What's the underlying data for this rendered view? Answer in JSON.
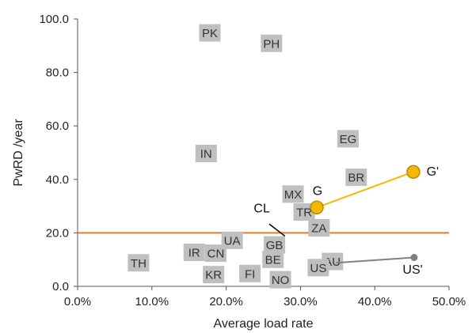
{
  "chart_data": {
    "type": "scatter",
    "title": "",
    "xlabel": "Average load rate",
    "ylabel": "PwRD /year",
    "xlim": [
      0,
      50
    ],
    "ylim": [
      0,
      100
    ],
    "x_ticks": [
      "0.0%",
      "10.0%",
      "20.0%",
      "30.0%",
      "40.0%",
      "50.0%"
    ],
    "x_tick_values": [
      0,
      10,
      20,
      30,
      40,
      50
    ],
    "y_ticks": [
      "0.0",
      "20.0",
      "40.0",
      "60.0",
      "80.0",
      "100.0"
    ],
    "y_tick_values": [
      0,
      20,
      40,
      60,
      80,
      100
    ],
    "grid": false,
    "legend": "none",
    "colors": {
      "label_box": "#bfbfbf",
      "threshold_line": "#f07b22",
      "g_series": "#f5b800",
      "g_series_stroke": "#b8860b",
      "us_series": "#808080",
      "axis": "#555555"
    },
    "countries": [
      {
        "label": "PK",
        "x": 17.8,
        "y": 94.8
      },
      {
        "label": "PH",
        "x": 26.1,
        "y": 90.9
      },
      {
        "label": "IN",
        "x": 17.3,
        "y": 49.7
      },
      {
        "label": "EG",
        "x": 36.4,
        "y": 55.2
      },
      {
        "label": "BR",
        "x": 37.5,
        "y": 40.8
      },
      {
        "label": "MX",
        "x": 29.0,
        "y": 34.5
      },
      {
        "label": "TR",
        "x": 30.5,
        "y": 27.8
      },
      {
        "label": "ZA",
        "x": 32.5,
        "y": 21.9
      },
      {
        "label": "UA",
        "x": 20.8,
        "y": 17.2
      },
      {
        "label": "GB",
        "x": 26.5,
        "y": 15.5
      },
      {
        "label": "IR",
        "x": 15.7,
        "y": 12.7
      },
      {
        "label": "CN",
        "x": 18.6,
        "y": 12.4
      },
      {
        "label": "BE",
        "x": 26.3,
        "y": 10.1
      },
      {
        "label": "AU",
        "x": 34.3,
        "y": 9.3
      },
      {
        "label": "US",
        "x": 32.4,
        "y": 7.0
      },
      {
        "label": "TH",
        "x": 8.2,
        "y": 8.8
      },
      {
        "label": "KR",
        "x": 18.3,
        "y": 4.4
      },
      {
        "label": "FI",
        "x": 23.2,
        "y": 4.8
      },
      {
        "label": "NO",
        "x": 27.3,
        "y": 2.5
      }
    ],
    "threshold": {
      "y": 20
    },
    "g_series": {
      "x": [
        32.2,
        45.2
      ],
      "y": [
        29.5,
        42.8
      ]
    },
    "us_series": {
      "x": [
        34.8,
        45.3
      ],
      "y": [
        8.8,
        10.8
      ]
    },
    "annotations": [
      {
        "text": "G",
        "x": 32.3,
        "y": 36.0
      },
      {
        "text": "G'",
        "x": 47.8,
        "y": 43.2
      },
      {
        "text": "US'",
        "x": 45.1,
        "y": 6.5
      },
      {
        "text": "CL",
        "x": 24.8,
        "y": 29.4
      }
    ],
    "cl_leader": {
      "x": [
        25.8,
        27.9
      ],
      "y": [
        23.3,
        18.8
      ]
    }
  }
}
